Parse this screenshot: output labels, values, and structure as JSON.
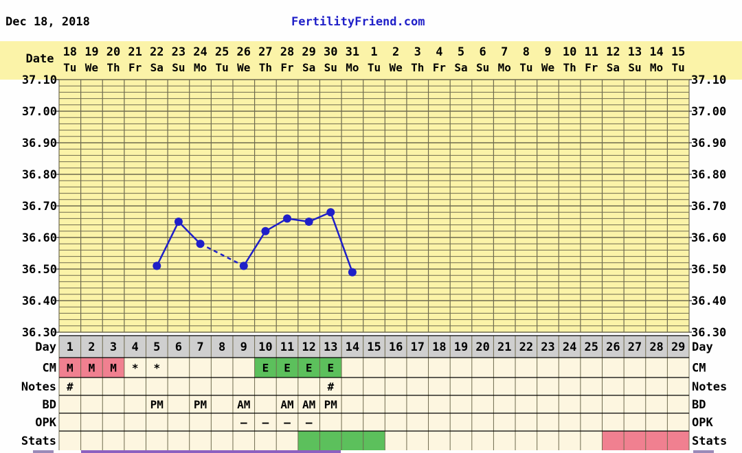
{
  "header": {
    "date": "Dec 18, 2018",
    "site": "FertilityFriend.com"
  },
  "colors": {
    "chart_bg": "#fbf3a8",
    "grid": "#6e6a4e",
    "series": "#1f1fc8",
    "day_bar": "#cfcfcf",
    "row_bg": "#fdf6e0",
    "cm_menstrual": "#f08090",
    "cm_egg_white": "#5cc05c",
    "stats_fertile": "#5cc05c",
    "stats_pink": "#f08090",
    "footer_bar": "#8c60c0"
  },
  "labels": {
    "date": "Date",
    "day": "Day",
    "cm": "CM",
    "notes": "Notes",
    "bd": "BD",
    "opk": "OPK",
    "stats": "Stats"
  },
  "dates": [
    "18",
    "19",
    "20",
    "21",
    "22",
    "23",
    "24",
    "25",
    "26",
    "27",
    "28",
    "29",
    "30",
    "31",
    "1",
    "2",
    "3",
    "4",
    "5",
    "6",
    "7",
    "8",
    "9",
    "10",
    "11",
    "12",
    "13",
    "14",
    "15"
  ],
  "weekdays": [
    "Tu",
    "We",
    "Th",
    "Fr",
    "Sa",
    "Su",
    "Mo",
    "Tu",
    "We",
    "Th",
    "Fr",
    "Sa",
    "Su",
    "Mo",
    "Tu",
    "We",
    "Th",
    "Fr",
    "Sa",
    "Su",
    "Mo",
    "Tu",
    "We",
    "Th",
    "Fr",
    "Sa",
    "Su",
    "Mo",
    "Tu"
  ],
  "days": [
    "1",
    "2",
    "3",
    "4",
    "5",
    "6",
    "7",
    "8",
    "9",
    "10",
    "11",
    "12",
    "13",
    "14",
    "15",
    "16",
    "17",
    "18",
    "19",
    "20",
    "21",
    "22",
    "23",
    "24",
    "25",
    "26",
    "27",
    "28",
    "29"
  ],
  "cm": [
    "M",
    "M",
    "M",
    "*",
    "*",
    "",
    "",
    "",
    "",
    "E",
    "E",
    "E",
    "E",
    "",
    "",
    "",
    "",
    "",
    "",
    "",
    "",
    "",
    "",
    "",
    "",
    "",
    "",
    "",
    ""
  ],
  "notes": [
    "#",
    "",
    "",
    "",
    "",
    "",
    "",
    "",
    "",
    "",
    "",
    "",
    "#",
    "",
    "",
    "",
    "",
    "",
    "",
    "",
    "",
    "",
    "",
    "",
    "",
    "",
    "",
    "",
    ""
  ],
  "bd": [
    "",
    "",
    "",
    "",
    "PM",
    "",
    "PM",
    "",
    "AM",
    "",
    "AM",
    "AM",
    "PM",
    "",
    "",
    "",
    "",
    "",
    "",
    "",
    "",
    "",
    "",
    "",
    "",
    "",
    "",
    "",
    ""
  ],
  "opk": [
    "",
    "",
    "",
    "",
    "",
    "",
    "",
    "",
    "–",
    "–",
    "–",
    "–",
    "",
    "",
    "",
    "",
    "",
    "",
    "",
    "",
    "",
    "",
    "",
    "",
    "",
    "",
    "",
    "",
    ""
  ],
  "stats": [
    "",
    "",
    "",
    "",
    "",
    "",
    "",
    "",
    "",
    "",
    "",
    "green",
    "green",
    "green",
    "green",
    "",
    "",
    "",
    "",
    "",
    "",
    "",
    "",
    "",
    "",
    "pink",
    "pink",
    "pink",
    "pink"
  ],
  "chart_data": {
    "type": "line",
    "title": "",
    "xlabel": "Day",
    "ylabel": "",
    "ylim": [
      36.3,
      37.1
    ],
    "yticks": [
      "37.10",
      "37.00",
      "36.90",
      "36.80",
      "36.70",
      "36.60",
      "36.50",
      "36.40",
      "36.30"
    ],
    "grid": true,
    "series": [
      {
        "points": [
          {
            "day": 5,
            "temp": 36.51
          },
          {
            "day": 6,
            "temp": 36.65
          },
          {
            "day": 7,
            "temp": 36.58
          },
          {
            "day": 9,
            "temp": 36.51
          },
          {
            "day": 10,
            "temp": 36.62
          },
          {
            "day": 11,
            "temp": 36.66
          },
          {
            "day": 12,
            "temp": 36.65
          },
          {
            "day": 13,
            "temp": 36.68
          },
          {
            "day": 14,
            "temp": 36.49
          }
        ],
        "dashed_segments": [
          [
            7,
            9
          ]
        ]
      }
    ]
  }
}
